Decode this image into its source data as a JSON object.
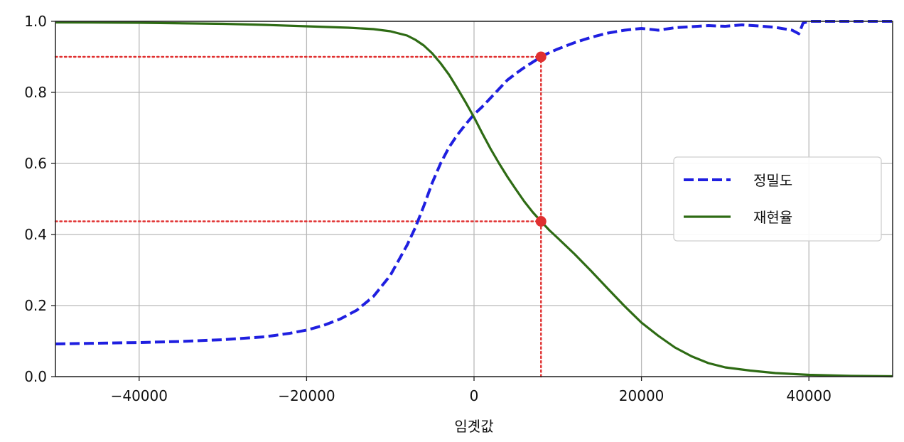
{
  "chart_data": {
    "type": "line",
    "xlabel": "임곗값",
    "ylabel": "",
    "xlim": [
      -50000,
      50000
    ],
    "ylim": [
      0.0,
      1.0
    ],
    "x_ticks": [
      -40000,
      -20000,
      0,
      20000,
      40000
    ],
    "x_tick_labels": [
      "−40000",
      "−20000",
      "0",
      "20000",
      "40000"
    ],
    "y_ticks": [
      0.0,
      0.2,
      0.4,
      0.6,
      0.8,
      1.0
    ],
    "y_tick_labels": [
      "0.0",
      "0.2",
      "0.4",
      "0.6",
      "0.8",
      "1.0"
    ],
    "grid": true,
    "legend_position": "center-right",
    "series": [
      {
        "name": "정밀도",
        "style": "dashed",
        "color": "#1f1fe0",
        "points": [
          [
            -50000,
            0.092
          ],
          [
            -45000,
            0.094
          ],
          [
            -40000,
            0.096
          ],
          [
            -35000,
            0.099
          ],
          [
            -30000,
            0.104
          ],
          [
            -25000,
            0.112
          ],
          [
            -22000,
            0.122
          ],
          [
            -20000,
            0.131
          ],
          [
            -18000,
            0.144
          ],
          [
            -16000,
            0.162
          ],
          [
            -14000,
            0.187
          ],
          [
            -12000,
            0.226
          ],
          [
            -10000,
            0.285
          ],
          [
            -8000,
            0.37
          ],
          [
            -7000,
            0.42
          ],
          [
            -6000,
            0.48
          ],
          [
            -5000,
            0.545
          ],
          [
            -4000,
            0.6
          ],
          [
            -3000,
            0.645
          ],
          [
            -2000,
            0.68
          ],
          [
            -1000,
            0.71
          ],
          [
            0,
            0.738
          ],
          [
            1000,
            0.76
          ],
          [
            2000,
            0.785
          ],
          [
            3000,
            0.81
          ],
          [
            4000,
            0.835
          ],
          [
            5000,
            0.853
          ],
          [
            6000,
            0.87
          ],
          [
            7000,
            0.885
          ],
          [
            8000,
            0.9
          ],
          [
            9000,
            0.912
          ],
          [
            10000,
            0.922
          ],
          [
            12000,
            0.94
          ],
          [
            14000,
            0.955
          ],
          [
            16000,
            0.967
          ],
          [
            18000,
            0.975
          ],
          [
            20000,
            0.98
          ],
          [
            22000,
            0.975
          ],
          [
            24000,
            0.982
          ],
          [
            26000,
            0.985
          ],
          [
            28000,
            0.988
          ],
          [
            30000,
            0.986
          ],
          [
            32000,
            0.99
          ],
          [
            34000,
            0.987
          ],
          [
            36000,
            0.983
          ],
          [
            38000,
            0.975
          ],
          [
            38800,
            0.965
          ],
          [
            39300,
            0.995
          ],
          [
            40000,
            1.0
          ],
          [
            45000,
            1.0
          ],
          [
            50000,
            1.0
          ]
        ]
      },
      {
        "name": "재현율",
        "style": "solid",
        "color": "#2e6b14",
        "points": [
          [
            -50000,
            0.997
          ],
          [
            -40000,
            0.996
          ],
          [
            -30000,
            0.993
          ],
          [
            -25000,
            0.99
          ],
          [
            -20000,
            0.986
          ],
          [
            -15000,
            0.982
          ],
          [
            -12000,
            0.978
          ],
          [
            -10000,
            0.972
          ],
          [
            -8000,
            0.96
          ],
          [
            -7000,
            0.948
          ],
          [
            -6000,
            0.932
          ],
          [
            -5000,
            0.91
          ],
          [
            -4000,
            0.882
          ],
          [
            -3000,
            0.85
          ],
          [
            -2000,
            0.812
          ],
          [
            -1000,
            0.772
          ],
          [
            0,
            0.73
          ],
          [
            1000,
            0.684
          ],
          [
            2000,
            0.64
          ],
          [
            3000,
            0.6
          ],
          [
            4000,
            0.562
          ],
          [
            5000,
            0.527
          ],
          [
            6000,
            0.493
          ],
          [
            7000,
            0.463
          ],
          [
            8000,
            0.437
          ],
          [
            9000,
            0.412
          ],
          [
            10000,
            0.39
          ],
          [
            12000,
            0.345
          ],
          [
            14000,
            0.297
          ],
          [
            16000,
            0.247
          ],
          [
            18000,
            0.198
          ],
          [
            20000,
            0.152
          ],
          [
            22000,
            0.115
          ],
          [
            24000,
            0.082
          ],
          [
            26000,
            0.057
          ],
          [
            28000,
            0.038
          ],
          [
            30000,
            0.026
          ],
          [
            33000,
            0.017
          ],
          [
            36000,
            0.01
          ],
          [
            40000,
            0.005
          ],
          [
            45000,
            0.002
          ],
          [
            50000,
            0.001
          ]
        ]
      }
    ],
    "annotations": [
      {
        "kind": "point",
        "x": 8000,
        "y": 0.9,
        "color": "#e03030"
      },
      {
        "kind": "point",
        "x": 8000,
        "y": 0.437,
        "color": "#e03030"
      },
      {
        "kind": "dotted-line",
        "from": [
          -50000,
          0.9
        ],
        "to": [
          8000,
          0.9
        ],
        "color": "#e03030"
      },
      {
        "kind": "dotted-line",
        "from": [
          -50000,
          0.437
        ],
        "to": [
          8000,
          0.437
        ],
        "color": "#e03030"
      },
      {
        "kind": "dotted-line",
        "from": [
          8000,
          0.0
        ],
        "to": [
          8000,
          0.9
        ],
        "color": "#e03030"
      }
    ]
  }
}
